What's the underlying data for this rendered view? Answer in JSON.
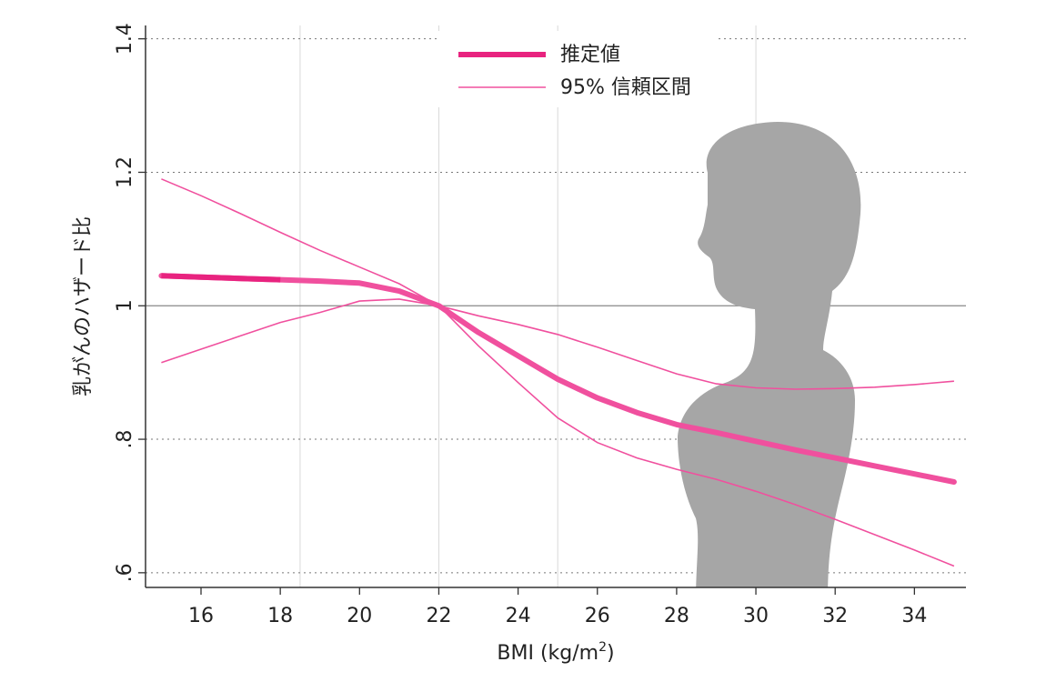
{
  "chart_data": {
    "type": "line",
    "xlabel": "BMI (kg/m",
    "xlabel_sup": "2",
    "xlabel_end": ")",
    "ylabel": "乳がんのハザード比",
    "xlim": [
      14.6,
      35.3
    ],
    "ylim": [
      0.578,
      1.42
    ],
    "x_ticks": [
      16,
      18,
      20,
      22,
      24,
      26,
      28,
      30,
      32,
      34
    ],
    "x_tick_labels": [
      "16",
      "18",
      "20",
      "22",
      "24",
      "26",
      "28",
      "30",
      "32",
      "34"
    ],
    "y_ticks": [
      0.6,
      0.8,
      1.0,
      1.2,
      1.4
    ],
    "y_tick_labels": [
      ".6",
      ".8",
      "1",
      "1.2",
      "1.4"
    ],
    "reference_line": 1.0,
    "grid_x": [
      18.5,
      22,
      25,
      30
    ],
    "legend": {
      "placement": "top-center",
      "items": [
        "推定値",
        "95% 信頼区間"
      ]
    },
    "colors": {
      "estimate": "#f0509e",
      "estimate_dark_segment": "#e8237f",
      "ci": "#f0509e",
      "silhouette": "#a6a6a6",
      "reference": "#888888"
    },
    "series": [
      {
        "name": "推定値",
        "x": [
          15,
          16,
          17,
          18,
          19,
          20,
          21,
          22,
          23,
          24,
          25,
          26,
          27,
          28,
          29,
          30,
          31,
          32,
          33,
          34,
          35
        ],
        "values": [
          1.045,
          1.043,
          1.041,
          1.039,
          1.037,
          1.034,
          1.022,
          1.0,
          0.96,
          0.925,
          0.89,
          0.862,
          0.84,
          0.822,
          0.81,
          0.797,
          0.784,
          0.772,
          0.76,
          0.748,
          0.736
        ]
      },
      {
        "name": "95% 信頼区間",
        "x": [
          15,
          16,
          17,
          18,
          19,
          20,
          21,
          22,
          23,
          24,
          25,
          26,
          27,
          28,
          29,
          30,
          31,
          32,
          33,
          34,
          35
        ],
        "upper": [
          1.19,
          1.165,
          1.138,
          1.11,
          1.083,
          1.058,
          1.033,
          1.0,
          0.985,
          0.972,
          0.957,
          0.938,
          0.918,
          0.898,
          0.883,
          0.877,
          0.875,
          0.876,
          0.878,
          0.882,
          0.887
        ],
        "lower": [
          0.915,
          0.935,
          0.955,
          0.975,
          0.99,
          1.007,
          1.01,
          1.0,
          0.94,
          0.885,
          0.832,
          0.795,
          0.772,
          0.755,
          0.74,
          0.722,
          0.702,
          0.68,
          0.657,
          0.634,
          0.61
        ]
      }
    ]
  }
}
